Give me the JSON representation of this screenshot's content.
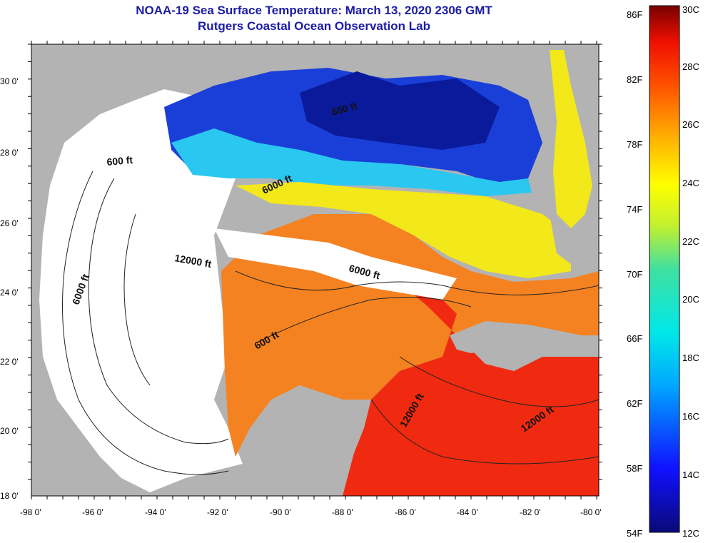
{
  "title": "NOAA-19 Sea Surface Temperature:  March 13, 2020 2306 GMT",
  "subtitle": "Rutgers Coastal Ocean Observation Lab",
  "map": {
    "lat_labels": [
      "30 0'",
      "28 0'",
      "26 0'",
      "24 0'",
      "22 0'",
      "20 0'",
      "18 0'"
    ],
    "lon_labels": [
      "-98 0'",
      "-96 0'",
      "-94 0'",
      "-92 0'",
      "-90 0'",
      "-88 0'",
      "-86 0'",
      "-84 0'",
      "-82 0'",
      "-80 0'"
    ],
    "contours": [
      "600 ft",
      "600 ft",
      "600 ft",
      "6000 ft",
      "6000 ft",
      "6000 ft",
      "12000 ft",
      "12000 ft",
      "12000 ft"
    ],
    "colors": {
      "land": "#b3b3b3",
      "cloud": "#ffffff"
    }
  },
  "colorbar": {
    "fahrenheit": [
      "86F",
      "82F",
      "78F",
      "74F",
      "70F",
      "66F",
      "62F",
      "58F",
      "54F"
    ],
    "celsius": [
      "30C",
      "28C",
      "26C",
      "24C",
      "22C",
      "20C",
      "18C",
      "16C",
      "14C",
      "12C"
    ]
  }
}
